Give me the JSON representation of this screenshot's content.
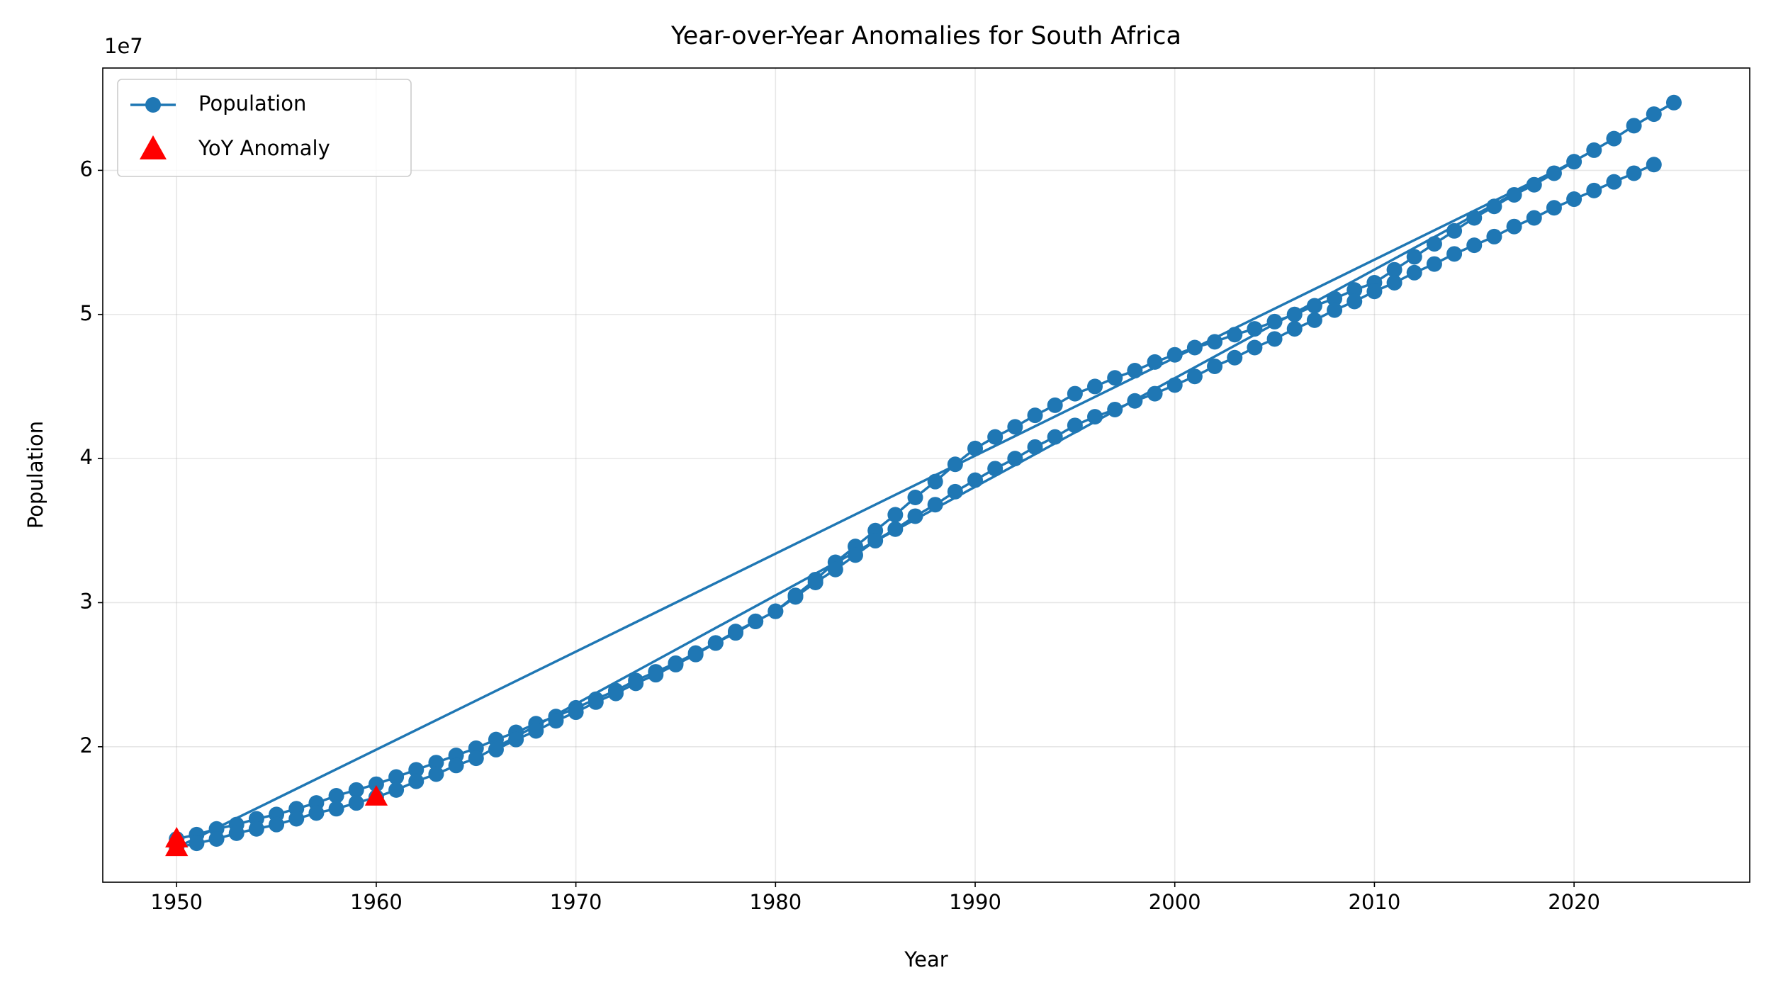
{
  "chart_data": {
    "type": "line",
    "title": "Year-over-Year Anomalies for South Africa",
    "x_label": "Year",
    "y_label": "Population",
    "y_offset_label": "1e7",
    "x": [
      1950,
      1951,
      1952,
      1953,
      1954,
      1955,
      1956,
      1957,
      1958,
      1959,
      1960,
      1961,
      1962,
      1963,
      1964,
      1965,
      1966,
      1967,
      1968,
      1969,
      1970,
      1971,
      1972,
      1973,
      1974,
      1975,
      1976,
      1977,
      1978,
      1979,
      1980,
      1981,
      1982,
      1983,
      1984,
      1985,
      1986,
      1987,
      1988,
      1989,
      1990,
      1991,
      1992,
      1993,
      1994,
      1995,
      1996,
      1997,
      1998,
      1999,
      2000,
      2001,
      2002,
      2003,
      2004,
      2005,
      2006,
      2007,
      2008,
      2009,
      2010,
      2011,
      2012,
      2013,
      2014,
      2015,
      2016,
      2017,
      2018,
      2019,
      2020,
      1950,
      1951,
      1952,
      1953,
      1954,
      1955,
      1956,
      1957,
      1958,
      1959,
      1960,
      1961,
      1962,
      1963,
      1964,
      1965,
      2021,
      2022,
      2023,
      2024,
      2025,
      1966,
      1966,
      1967,
      1968,
      1969,
      1970,
      1971,
      1972,
      1973,
      1974,
      1975,
      1976,
      1977,
      1978,
      1979,
      1980,
      1981,
      1982,
      1983,
      1984,
      1985,
      1986,
      1987,
      1988,
      1989,
      1990,
      1991,
      1992,
      1993,
      1994,
      1995,
      1996,
      1997,
      1998,
      1999,
      2000,
      2001,
      2002,
      2003,
      2004,
      2005,
      2006,
      2007,
      2008,
      2009,
      2010,
      2011,
      2012,
      2013,
      2014,
      2015,
      2016,
      2017,
      2018,
      2019,
      2020,
      2021,
      2022,
      2023,
      2024
    ],
    "series": [
      {
        "name": "Population",
        "color": "#1f77b4",
        "values": [
          1.36,
          1.39,
          1.43,
          1.46,
          1.5,
          1.53,
          1.57,
          1.61,
          1.66,
          1.7,
          1.74,
          1.79,
          1.84,
          1.89,
          1.94,
          1.99,
          2.05,
          2.1,
          2.16,
          2.21,
          2.27,
          2.33,
          2.39,
          2.46,
          2.52,
          2.58,
          2.65,
          2.72,
          2.8,
          2.87,
          2.94,
          3.05,
          3.16,
          3.28,
          3.39,
          3.5,
          3.61,
          3.73,
          3.84,
          3.96,
          4.07,
          4.15,
          4.22,
          4.3,
          4.37,
          4.45,
          4.5,
          4.56,
          4.61,
          4.67,
          4.72,
          4.77,
          4.81,
          4.86,
          4.9,
          4.95,
          5.0,
          5.06,
          5.11,
          5.17,
          5.22,
          5.31,
          5.4,
          5.49,
          5.58,
          5.67,
          5.75,
          5.83,
          5.9,
          5.98,
          6.06,
          1.3,
          1.33,
          1.36,
          1.4,
          1.43,
          1.46,
          1.5,
          1.54,
          1.57,
          1.61,
          1.65,
          1.7,
          1.76,
          1.81,
          1.87,
          1.92,
          6.14,
          6.22,
          6.31,
          6.39,
          6.47,
          null,
          1.98,
          2.05,
          2.11,
          2.18,
          2.24,
          2.31,
          2.37,
          2.44,
          2.5,
          2.57,
          2.64,
          2.72,
          2.79,
          2.87,
          2.94,
          3.04,
          3.14,
          3.23,
          3.33,
          3.43,
          3.51,
          3.6,
          3.68,
          3.77,
          3.85,
          3.93,
          4.0,
          4.08,
          4.15,
          4.23,
          4.29,
          4.34,
          4.4,
          4.45,
          4.51,
          4.57,
          4.64,
          4.7,
          4.77,
          4.83,
          4.9,
          4.96,
          5.03,
          5.09,
          5.16,
          5.22,
          5.29,
          5.35,
          5.42,
          5.48,
          5.54,
          5.61,
          5.67,
          5.74,
          5.8,
          5.86,
          5.92,
          5.98,
          6.04
        ]
      },
      {
        "name": "YoY Anomaly",
        "color": "#ff0000",
        "type": "scatter",
        "x": [
          1950,
          1950,
          1960
        ],
        "values": [
          1.3,
          1.36,
          1.65
        ]
      }
    ],
    "xlim": [
      1946.3,
      2028.8
    ],
    "ylim": [
      1.06,
      6.71
    ],
    "xticks": [
      1950,
      1960,
      1970,
      1980,
      1990,
      2000,
      2010,
      2020
    ],
    "yticks": [
      2,
      3,
      4,
      5,
      6
    ],
    "grid": true,
    "legend": "upper left"
  }
}
